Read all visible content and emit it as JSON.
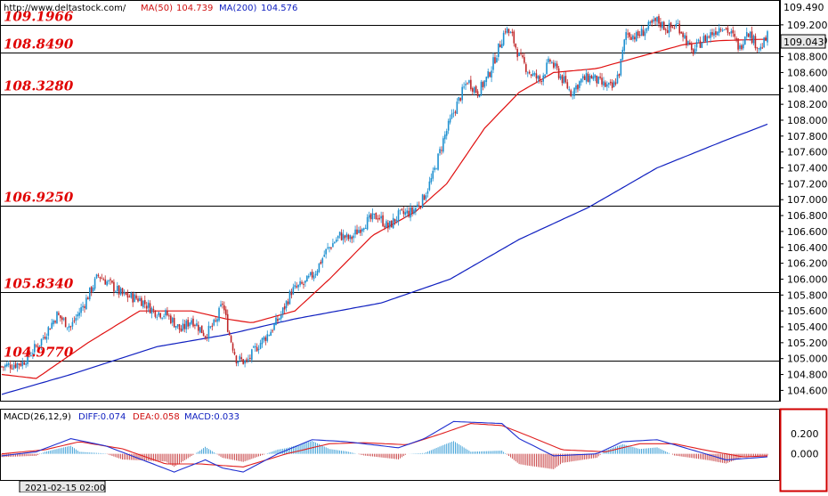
{
  "header": {
    "url": "http://www.deltastock.com/",
    "ma50_label": "MA(50)",
    "ma50_value": "104.739",
    "ma200_label": "MA(200)",
    "ma200_value": "104.576"
  },
  "macd_header": {
    "name": "MACD(26,12,9)",
    "diff": "DIFF:0.074",
    "dea": "DEA:0.058",
    "macd": "MACD:0.033"
  },
  "date_label": "2021-02-15 02:00",
  "current_price": "109.043",
  "colors": {
    "up_candle": "#1e90d0",
    "down_candle": "#c0282a",
    "ma50": "#e01010",
    "ma200": "#1020c0",
    "level_label": "#e00000",
    "diff_line": "#2030d0",
    "dea_line": "#e02020",
    "grid_line": "#000000",
    "frame_highlight": "#d00000"
  },
  "chart_data": {
    "type": "candlestick",
    "price_axis": {
      "ticks": [
        "104.600",
        "104.800",
        "105.000",
        "105.200",
        "105.400",
        "105.600",
        "105.800",
        "106.000",
        "106.200",
        "106.400",
        "106.600",
        "106.800",
        "107.000",
        "107.200",
        "107.400",
        "107.600",
        "107.800",
        "108.000",
        "108.200",
        "108.400",
        "108.600",
        "108.800",
        "109.000",
        "109.200"
      ],
      "top_label": "109.490",
      "range": [
        104.47,
        109.49
      ]
    },
    "levels": [
      {
        "label": "109.1966",
        "value": 109.1966
      },
      {
        "label": "108.8490",
        "value": 108.849
      },
      {
        "label": "108.3280",
        "value": 108.328
      },
      {
        "label": "106.9250",
        "value": 106.925
      },
      {
        "label": "105.8340",
        "value": 105.834
      },
      {
        "label": "104.9770",
        "value": 104.977
      }
    ],
    "close_path": [
      [
        0,
        104.9
      ],
      [
        12,
        104.95
      ],
      [
        22,
        105.2
      ],
      [
        32,
        105.55
      ],
      [
        40,
        105.4
      ],
      [
        48,
        105.7
      ],
      [
        56,
        106.05
      ],
      [
        62,
        105.95
      ],
      [
        70,
        105.8
      ],
      [
        80,
        105.75
      ],
      [
        88,
        105.6
      ],
      [
        96,
        105.55
      ],
      [
        104,
        105.35
      ],
      [
        110,
        105.5
      ],
      [
        118,
        105.3
      ],
      [
        124,
        105.45
      ],
      [
        128,
        105.7
      ],
      [
        132,
        105.3
      ],
      [
        136,
        105.0
      ],
      [
        142,
        104.95
      ],
      [
        148,
        105.15
      ],
      [
        156,
        105.35
      ],
      [
        162,
        105.55
      ],
      [
        168,
        105.85
      ],
      [
        176,
        105.95
      ],
      [
        182,
        106.1
      ],
      [
        188,
        106.35
      ],
      [
        196,
        106.55
      ],
      [
        202,
        106.5
      ],
      [
        210,
        106.7
      ],
      [
        218,
        106.8
      ],
      [
        224,
        106.65
      ],
      [
        230,
        106.8
      ],
      [
        238,
        106.85
      ],
      [
        244,
        107.0
      ],
      [
        250,
        107.3
      ],
      [
        256,
        107.75
      ],
      [
        262,
        108.1
      ],
      [
        266,
        108.3
      ],
      [
        270,
        108.5
      ],
      [
        276,
        108.35
      ],
      [
        282,
        108.55
      ],
      [
        288,
        108.9
      ],
      [
        292,
        109.15
      ],
      [
        296,
        109.05
      ],
      [
        300,
        108.8
      ],
      [
        306,
        108.6
      ],
      [
        312,
        108.5
      ],
      [
        318,
        108.75
      ],
      [
        324,
        108.55
      ],
      [
        330,
        108.35
      ],
      [
        336,
        108.5
      ],
      [
        342,
        108.55
      ],
      [
        348,
        108.45
      ],
      [
        354,
        108.4
      ],
      [
        358,
        108.6
      ],
      [
        362,
        109.1
      ],
      [
        368,
        109.05
      ],
      [
        374,
        109.15
      ],
      [
        380,
        109.25
      ],
      [
        386,
        109.15
      ],
      [
        392,
        109.2
      ],
      [
        396,
        109.05
      ],
      [
        400,
        108.85
      ],
      [
        406,
        109.0
      ],
      [
        412,
        109.1
      ],
      [
        418,
        109.2
      ],
      [
        424,
        109.05
      ],
      [
        428,
        108.9
      ],
      [
        432,
        109.15
      ],
      [
        436,
        109.0
      ],
      [
        440,
        108.9
      ],
      [
        444,
        109.05
      ]
    ],
    "ma50_path": [
      [
        0,
        104.8
      ],
      [
        20,
        104.75
      ],
      [
        50,
        105.2
      ],
      [
        80,
        105.6
      ],
      [
        110,
        105.6
      ],
      [
        130,
        105.5
      ],
      [
        145,
        105.45
      ],
      [
        170,
        105.6
      ],
      [
        190,
        106.0
      ],
      [
        215,
        106.55
      ],
      [
        240,
        106.85
      ],
      [
        258,
        107.2
      ],
      [
        280,
        107.9
      ],
      [
        300,
        108.35
      ],
      [
        320,
        108.6
      ],
      [
        345,
        108.65
      ],
      [
        370,
        108.8
      ],
      [
        395,
        108.95
      ],
      [
        415,
        109.0
      ],
      [
        444,
        109.02
      ]
    ],
    "ma200_path": [
      [
        0,
        104.55
      ],
      [
        40,
        104.8
      ],
      [
        90,
        105.15
      ],
      [
        130,
        105.3
      ],
      [
        170,
        105.5
      ],
      [
        220,
        105.7
      ],
      [
        260,
        106.0
      ],
      [
        300,
        106.5
      ],
      [
        340,
        106.9
      ],
      [
        380,
        107.4
      ],
      [
        420,
        107.75
      ],
      [
        444,
        107.95
      ]
    ],
    "macd": {
      "axis_ticks": [
        "0.200",
        "0.000"
      ],
      "diff_path": [
        [
          0,
          -0.02
        ],
        [
          20,
          0.02
        ],
        [
          40,
          0.15
        ],
        [
          60,
          0.08
        ],
        [
          80,
          -0.05
        ],
        [
          100,
          -0.18
        ],
        [
          118,
          -0.06
        ],
        [
          128,
          -0.14
        ],
        [
          140,
          -0.18
        ],
        [
          160,
          0.0
        ],
        [
          180,
          0.14
        ],
        [
          200,
          0.12
        ],
        [
          230,
          0.06
        ],
        [
          245,
          0.15
        ],
        [
          262,
          0.32
        ],
        [
          290,
          0.3
        ],
        [
          300,
          0.15
        ],
        [
          320,
          -0.02
        ],
        [
          345,
          0.0
        ],
        [
          360,
          0.12
        ],
        [
          380,
          0.14
        ],
        [
          400,
          0.04
        ],
        [
          420,
          -0.06
        ],
        [
          444,
          -0.03
        ]
      ],
      "dea_path": [
        [
          0,
          0.0
        ],
        [
          25,
          0.04
        ],
        [
          45,
          0.12
        ],
        [
          70,
          0.05
        ],
        [
          95,
          -0.1
        ],
        [
          115,
          -0.1
        ],
        [
          140,
          -0.13
        ],
        [
          165,
          0.0
        ],
        [
          190,
          0.1
        ],
        [
          210,
          0.11
        ],
        [
          235,
          0.09
        ],
        [
          255,
          0.2
        ],
        [
          272,
          0.3
        ],
        [
          290,
          0.28
        ],
        [
          305,
          0.18
        ],
        [
          325,
          0.04
        ],
        [
          350,
          0.02
        ],
        [
          370,
          0.1
        ],
        [
          390,
          0.1
        ],
        [
          410,
          0.03
        ],
        [
          430,
          -0.03
        ],
        [
          444,
          -0.02
        ]
      ]
    }
  }
}
